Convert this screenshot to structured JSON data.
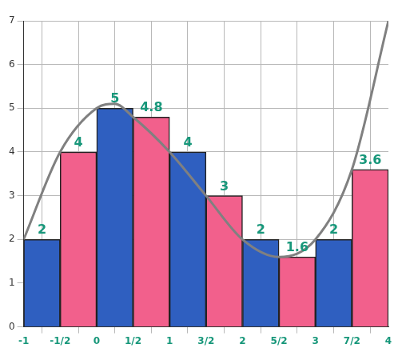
{
  "chart_data": {
    "type": "bar",
    "xlim": [
      -1,
      4
    ],
    "xticks": [
      {
        "value": -1,
        "label": "-1"
      },
      {
        "value": -0.5,
        "label": "-1/2"
      },
      0,
      {
        "value": 0.5,
        "label": "1/2"
      },
      1,
      {
        "value": 1.5,
        "label": "3/2"
      },
      2,
      {
        "value": 2.5,
        "label": "5/2"
      },
      3,
      {
        "value": 3.5,
        "label": "7/2"
      },
      4
    ],
    "ylim": [
      0,
      7
    ],
    "yticks": [
      0,
      1,
      2,
      3,
      4,
      5,
      6,
      7
    ],
    "grid": true,
    "series": [
      {
        "type": "bar",
        "x": [
          -0.75,
          -0.25,
          0.25,
          0.75,
          1.25,
          1.75,
          2.25,
          2.75,
          3.25,
          3.75
        ],
        "values": [
          2,
          4,
          5,
          4.8,
          4,
          3,
          2,
          1.6,
          2,
          3.6
        ],
        "colors": [
          "#2f5fc0",
          "#f2608c",
          "#2f5fc0",
          "#f2608c",
          "#2f5fc0",
          "#f2608c",
          "#2f5fc0",
          "#f2608c",
          "#2f5fc0",
          "#f2608c"
        ],
        "data_labels": true
      },
      {
        "type": "line",
        "x": [
          -1,
          -0.5,
          0,
          0.25,
          0.5,
          1,
          1.5,
          2,
          2.5,
          3,
          3.5,
          4
        ],
        "values": [
          2,
          4,
          5,
          5.1,
          4.8,
          4,
          3,
          2,
          1.6,
          2,
          3.6,
          7
        ],
        "color": "#808080",
        "data_labels": false
      }
    ]
  }
}
